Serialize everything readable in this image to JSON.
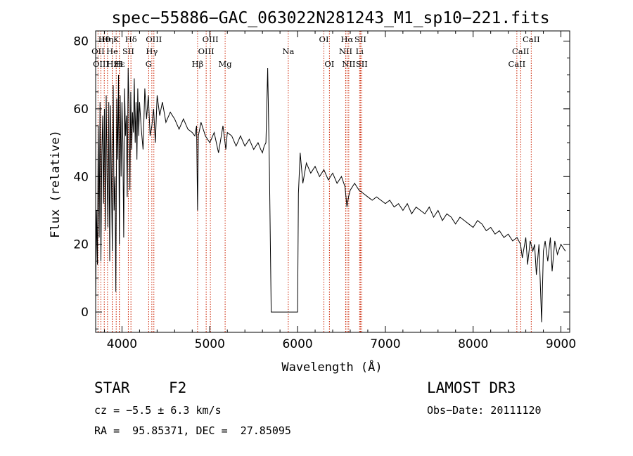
{
  "chart_data": {
    "type": "line",
    "title": "spec−55886−GAC_063022N281243_M1_sp10−221.fits",
    "xlabel": "Wavelength (Å)",
    "ylabel": "Flux (relative)",
    "xlim": [
      3700,
      9100
    ],
    "ylim": [
      -6,
      83
    ],
    "xticks": [
      4000,
      5000,
      6000,
      7000,
      8000,
      9000
    ],
    "xtick_labels": [
      "4000",
      "5000",
      "6000",
      "7000",
      "8000",
      "9000"
    ],
    "yticks": [
      0,
      20,
      40,
      60,
      80
    ],
    "ytick_labels": [
      "0",
      "20",
      "40",
      "60",
      "80"
    ],
    "series": [
      {
        "name": "flux",
        "x": [
          3700,
          3710,
          3720,
          3730,
          3740,
          3750,
          3760,
          3770,
          3780,
          3790,
          3800,
          3810,
          3820,
          3830,
          3840,
          3850,
          3860,
          3870,
          3880,
          3890,
          3900,
          3910,
          3920,
          3930,
          3940,
          3950,
          3960,
          3970,
          3980,
          3990,
          4000,
          4010,
          4020,
          4030,
          4040,
          4050,
          4060,
          4070,
          4080,
          4090,
          4100,
          4110,
          4120,
          4130,
          4140,
          4150,
          4160,
          4170,
          4180,
          4190,
          4200,
          4220,
          4240,
          4260,
          4280,
          4300,
          4320,
          4340,
          4360,
          4380,
          4400,
          4430,
          4460,
          4500,
          4550,
          4600,
          4650,
          4700,
          4750,
          4800,
          4830,
          4850,
          4861,
          4870,
          4900,
          4950,
          5000,
          5050,
          5100,
          5150,
          5183,
          5200,
          5250,
          5300,
          5350,
          5400,
          5450,
          5500,
          5550,
          5580,
          5600,
          5620,
          5640,
          5660,
          5680,
          5700,
          5800,
          5900,
          5960,
          5980,
          6000,
          6010,
          6030,
          6060,
          6100,
          6150,
          6200,
          6250,
          6300,
          6350,
          6400,
          6450,
          6500,
          6540,
          6563,
          6580,
          6600,
          6650,
          6700,
          6750,
          6800,
          6850,
          6900,
          6950,
          7000,
          7050,
          7100,
          7150,
          7200,
          7250,
          7300,
          7350,
          7400,
          7450,
          7500,
          7550,
          7600,
          7650,
          7700,
          7750,
          7800,
          7850,
          7900,
          7950,
          8000,
          8050,
          8100,
          8150,
          8200,
          8250,
          8300,
          8350,
          8400,
          8450,
          8500,
          8540,
          8560,
          8600,
          8620,
          8650,
          8680,
          8700,
          8720,
          8750,
          8780,
          8800,
          8820,
          8850,
          8880,
          8900,
          8930,
          8960,
          9000,
          9050
        ],
        "y": [
          4,
          30,
          14,
          55,
          22,
          62,
          15,
          46,
          58,
          32,
          60,
          24,
          64,
          41,
          25,
          62,
          15,
          61,
          38,
          18,
          67,
          30,
          40,
          6,
          63,
          45,
          70,
          20,
          64,
          40,
          62,
          50,
          22,
          66,
          52,
          58,
          34,
          72,
          61,
          36,
          65,
          48,
          59,
          53,
          69,
          50,
          62,
          45,
          66,
          52,
          62,
          54,
          48,
          66,
          57,
          64,
          52,
          55,
          60,
          50,
          64,
          58,
          62,
          56,
          59,
          57,
          54,
          57,
          54,
          53,
          52,
          55,
          30,
          52,
          56,
          52,
          50,
          53,
          47,
          55,
          48,
          53,
          52,
          49,
          52,
          49,
          51,
          48,
          50,
          48,
          47,
          49,
          50,
          72,
          42,
          0,
          0,
          0,
          0,
          0,
          0,
          35,
          47,
          38,
          44,
          41,
          43,
          40,
          42,
          39,
          41,
          38,
          40,
          37,
          31,
          34,
          36,
          38,
          36,
          35,
          34,
          33,
          34,
          33,
          32,
          33,
          31,
          32,
          30,
          32,
          29,
          31,
          30,
          29,
          31,
          28,
          30,
          27,
          29,
          28,
          26,
          28,
          27,
          26,
          25,
          27,
          26,
          24,
          25,
          23,
          24,
          22,
          23,
          21,
          22,
          20,
          16,
          22,
          14,
          21,
          18,
          20,
          11,
          20,
          -3,
          18,
          21,
          15,
          22,
          12,
          21,
          17,
          20,
          18
        ]
      }
    ],
    "spectral_lines": [
      {
        "name": "Hθ",
        "x": 3798,
        "tier": 1
      },
      {
        "name": "OII",
        "x": 3727,
        "tier": 2
      },
      {
        "name": "OIII",
        "x": 3760,
        "tier": 3
      },
      {
        "name": "Hη",
        "x": 3835,
        "tier": 1
      },
      {
        "name": "He",
        "x": 3889,
        "tier": 2
      },
      {
        "name": "Hz",
        "x": 3889,
        "tier": 3
      },
      {
        "name": "K",
        "x": 3934,
        "tier": 1
      },
      {
        "name": "H",
        "x": 3969,
        "tier": 3
      },
      {
        "name": "Hε",
        "x": 3970,
        "tier": 3
      },
      {
        "name": "Hδ",
        "x": 4102,
        "tier": 1
      },
      {
        "name": "SII",
        "x": 4072,
        "tier": 2
      },
      {
        "name": "OIII",
        "x": 4363,
        "tier": 1
      },
      {
        "name": "Hγ",
        "x": 4340,
        "tier": 2
      },
      {
        "name": "G",
        "x": 4304,
        "tier": 3
      },
      {
        "name": "Hβ",
        "x": 4861,
        "tier": 3
      },
      {
        "name": "OIII",
        "x": 5007,
        "tier": 1
      },
      {
        "name": "OIII",
        "x": 4959,
        "tier": 2
      },
      {
        "name": "Mg",
        "x": 5175,
        "tier": 3
      },
      {
        "name": "Na",
        "x": 5894,
        "tier": 2
      },
      {
        "name": "OI",
        "x": 6300,
        "tier": 1
      },
      {
        "name": "OI",
        "x": 6363,
        "tier": 3
      },
      {
        "name": "Hα",
        "x": 6563,
        "tier": 1
      },
      {
        "name": "NII",
        "x": 6548,
        "tier": 2
      },
      {
        "name": "NII",
        "x": 6583,
        "tier": 3
      },
      {
        "name": "SII",
        "x": 6716,
        "tier": 1
      },
      {
        "name": "Li",
        "x": 6707,
        "tier": 2
      },
      {
        "name": "SII",
        "x": 6731,
        "tier": 3
      },
      {
        "name": "CaII",
        "x": 8662,
        "tier": 1
      },
      {
        "name": "CaII",
        "x": 8542,
        "tier": 2
      },
      {
        "name": "CaII",
        "x": 8498,
        "tier": 3
      }
    ],
    "line_marker_color": "#cc2200",
    "plot_color": "#000000"
  },
  "info": {
    "object_type": "STAR",
    "subclass": "F2",
    "survey": "LAMOST DR3",
    "redshift": "cz = −5.5 ± 6.3 km/s",
    "obs_date": "Obs−Date: 20111120",
    "coords": "RA =  95.85371, DEC =  27.85095"
  }
}
